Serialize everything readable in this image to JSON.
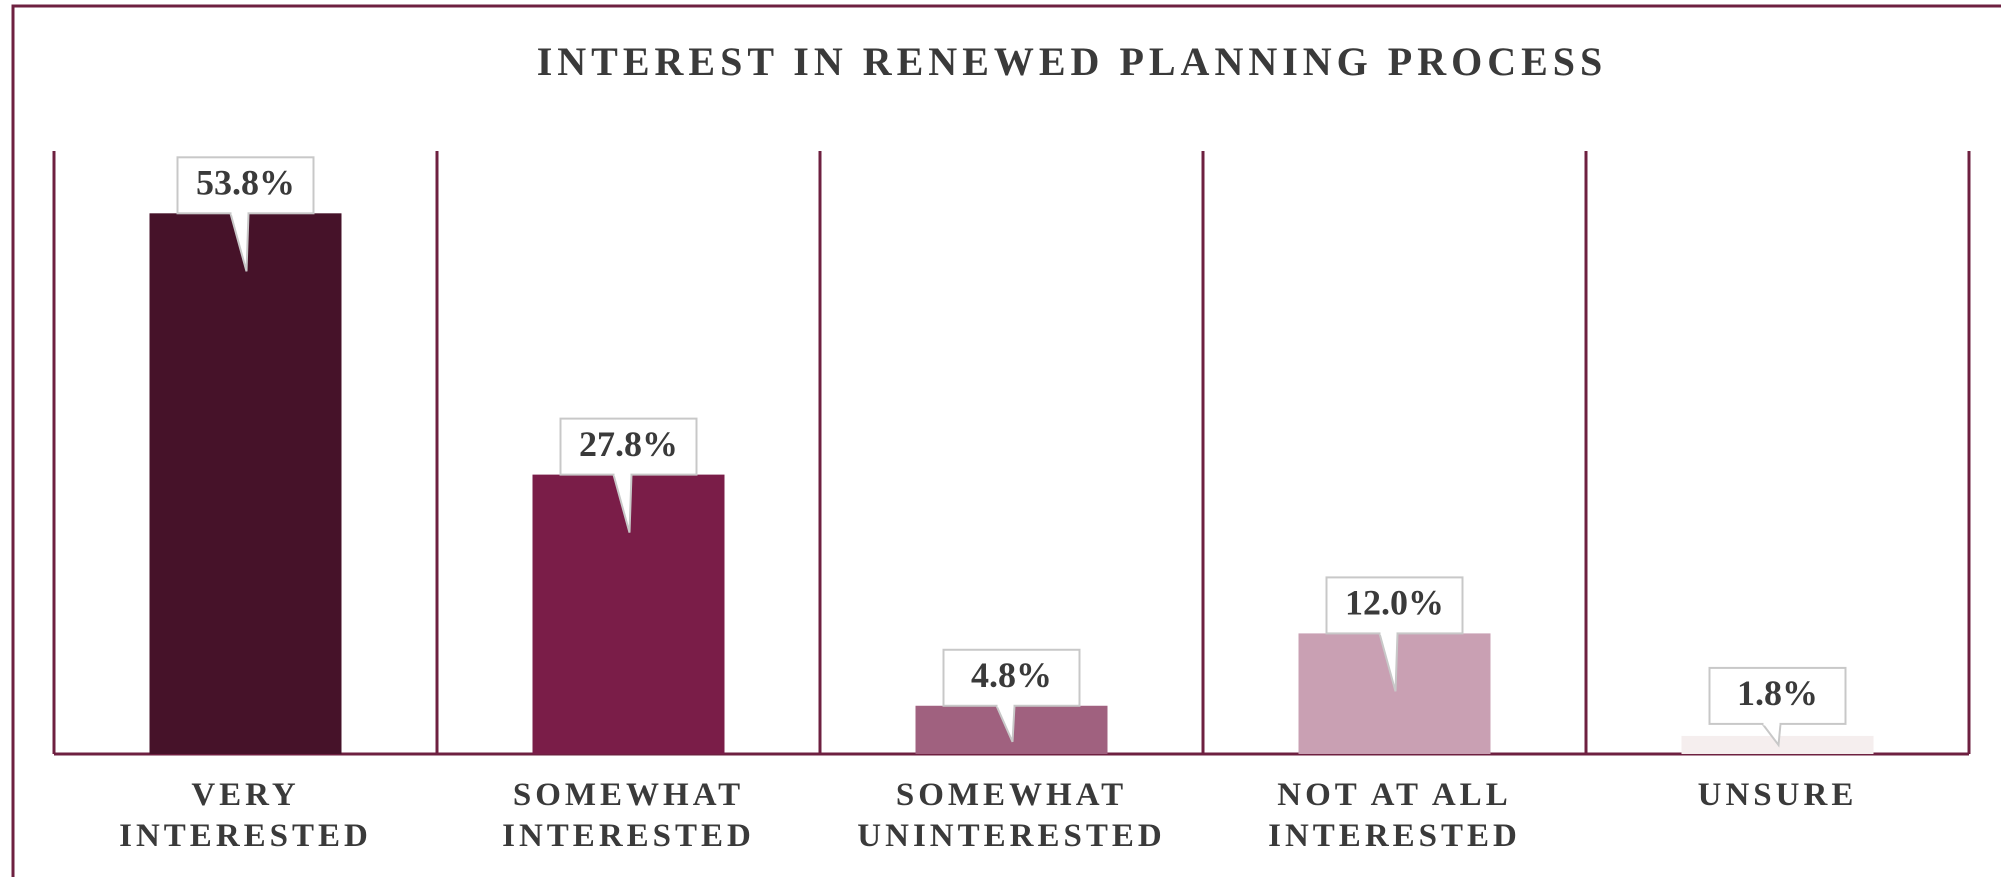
{
  "chart_data": {
    "type": "bar",
    "title": "INTEREST IN RENEWED PLANNING PROCESS",
    "categories": [
      [
        "VERY",
        "INTERESTED"
      ],
      [
        "SOMEWHAT",
        "INTERESTED"
      ],
      [
        "SOMEWHAT",
        "UNINTERESTED"
      ],
      [
        "NOT AT ALL",
        "INTERESTED"
      ],
      [
        "UNSURE"
      ]
    ],
    "values": [
      53.8,
      27.8,
      4.8,
      12.0,
      1.8
    ],
    "value_labels": [
      "53.8%",
      "27.8%",
      "4.8%",
      "12.0%",
      "1.8%"
    ],
    "colors": [
      "#461229",
      "#7a1d48",
      "#a0617f",
      "#c9a0b3",
      "#f5eeee"
    ],
    "ylim": [
      0,
      60
    ]
  }
}
